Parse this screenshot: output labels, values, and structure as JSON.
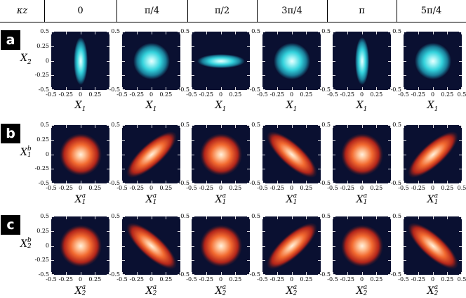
{
  "header": {
    "corner": "κz",
    "columns": [
      "0",
      "π/4",
      "π/2",
      "3π/4",
      "π",
      "5π/4"
    ]
  },
  "rows": [
    {
      "label": "a",
      "ylabel": {
        "base": "X",
        "sub": "2",
        "sup": ""
      },
      "xlabel": {
        "base": "X",
        "sub": "1",
        "sup": ""
      },
      "theme": "cyan",
      "cells": [
        {
          "shape": "ellipse",
          "orientation": "vertical"
        },
        {
          "shape": "circle",
          "orientation": "none"
        },
        {
          "shape": "ellipse",
          "orientation": "horizontal"
        },
        {
          "shape": "circle",
          "orientation": "none"
        },
        {
          "shape": "ellipse",
          "orientation": "vertical"
        },
        {
          "shape": "circle",
          "orientation": "none"
        }
      ]
    },
    {
      "label": "b",
      "ylabel": {
        "base": "X",
        "sub": "1",
        "sup": "b"
      },
      "xlabel": {
        "base": "X",
        "sub": "1",
        "sup": "a"
      },
      "theme": "orange",
      "cells": [
        {
          "shape": "circle",
          "orientation": "none"
        },
        {
          "shape": "ellipse",
          "orientation": "positive-diagonal"
        },
        {
          "shape": "circle",
          "orientation": "none"
        },
        {
          "shape": "ellipse",
          "orientation": "negative-diagonal"
        },
        {
          "shape": "circle",
          "orientation": "none"
        },
        {
          "shape": "ellipse",
          "orientation": "positive-diagonal"
        }
      ]
    },
    {
      "label": "c",
      "ylabel": {
        "base": "X",
        "sub": "2",
        "sup": "b"
      },
      "xlabel": {
        "base": "X",
        "sub": "2",
        "sup": "a"
      },
      "theme": "orange",
      "cells": [
        {
          "shape": "circle",
          "orientation": "none"
        },
        {
          "shape": "ellipse",
          "orientation": "negative-diagonal"
        },
        {
          "shape": "circle",
          "orientation": "none"
        },
        {
          "shape": "ellipse",
          "orientation": "positive-diagonal"
        },
        {
          "shape": "circle",
          "orientation": "none"
        },
        {
          "shape": "ellipse",
          "orientation": "negative-diagonal"
        }
      ]
    }
  ],
  "axis": {
    "range": [
      -0.5,
      0.5
    ],
    "x_ticks": [
      "-0.5",
      "-0.25",
      "0",
      "0.25",
      "0.5"
    ],
    "y_ticks": [
      "0.5",
      "0.25",
      "0",
      "-0.25",
      "-0.5"
    ]
  },
  "colors": {
    "background": "#0a1031",
    "cyan_core": "#e8ffff",
    "cyan_mid": "#33d2dc",
    "orange_core": "#fff0de",
    "orange_mid": "#f26a30",
    "orange_outer": "#b2251a"
  }
}
